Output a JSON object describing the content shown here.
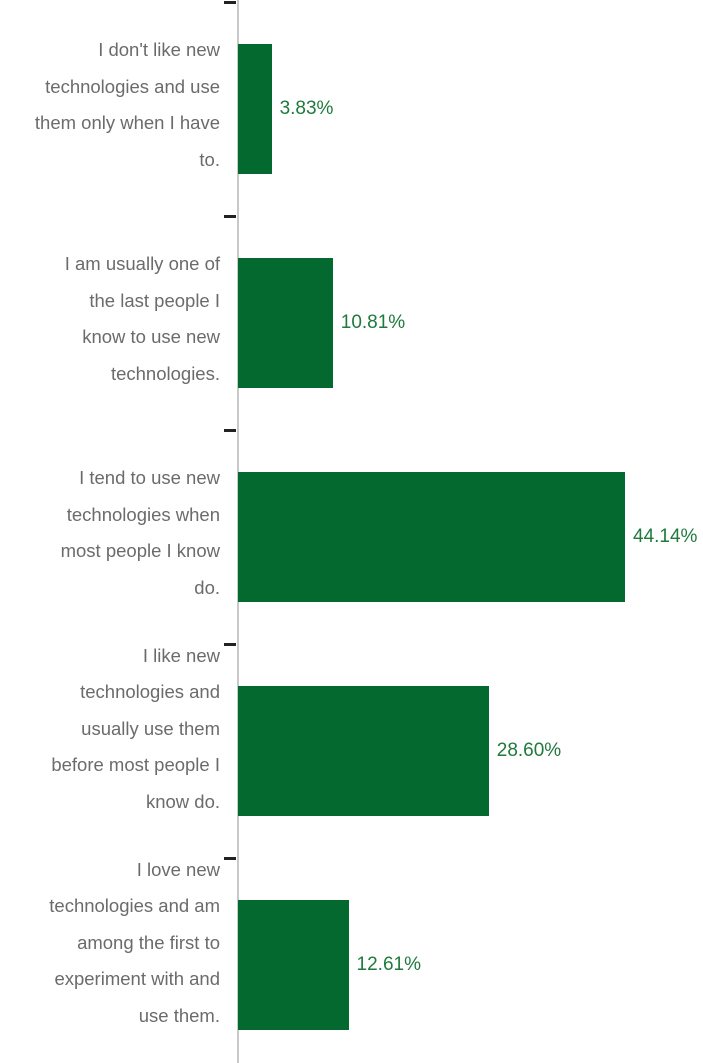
{
  "chart_data": {
    "type": "bar",
    "orientation": "horizontal",
    "categories": [
      "I don't like new technologies and use them only when I have to.",
      "I am usually one of the last people I know to use new technologies.",
      "I tend to use new technologies when most people I know do.",
      "I like new technologies and usually use them before most people I know do.",
      "I love new technologies and am among the first to experiment with and use them."
    ],
    "category_lines": [
      [
        "I don't like new",
        "technologies and use",
        "them only when I have",
        "to."
      ],
      [
        "I am usually one of",
        "the last people I",
        "know to use new",
        "technologies."
      ],
      [
        "I tend to use new",
        "technologies when",
        "most people I know",
        "do."
      ],
      [
        "I like new",
        "technologies and",
        "usually use them",
        "before most people I",
        "know do."
      ],
      [
        "I love new",
        "technologies and am",
        "among the first to",
        "experiment with and",
        "use them."
      ]
    ],
    "values": [
      3.83,
      10.81,
      44.14,
      28.6,
      12.61
    ],
    "value_labels": [
      "3.83%",
      "10.81%",
      "44.14%",
      "28.60%",
      "12.61%"
    ],
    "xlim": [
      0,
      44.14
    ],
    "grid": false,
    "legend": "none",
    "colors": {
      "bar": "#03692f",
      "value_text": "#1f7a3c",
      "category_text": "#6b6b6b",
      "axis": "#222222"
    }
  }
}
